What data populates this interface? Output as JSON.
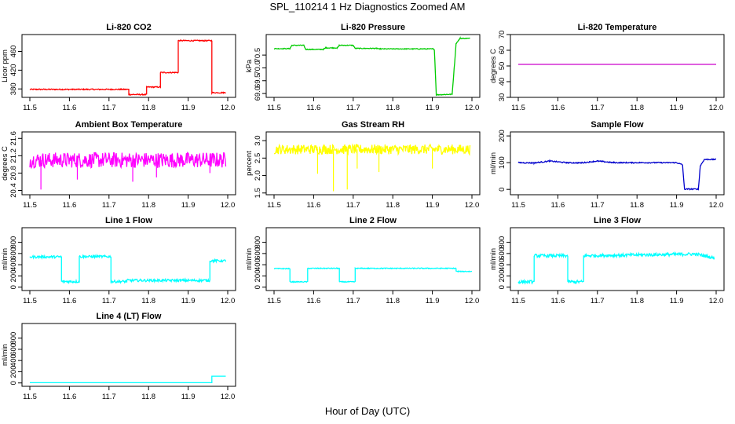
{
  "page_title": "SPL_110214  1 Hz Diagnostics Zoomed AM",
  "x_axis_label": "Hour of Day (UTC)",
  "chart_data": [
    {
      "type": "line",
      "title": "Li-820 CO2",
      "ylabel": "Licor ppm",
      "color": "#ff0000",
      "xlim": [
        11.5,
        12.0
      ],
      "ylim": [
        362,
        496
      ],
      "xticks": [
        "11.5",
        "11.6",
        "11.7",
        "11.8",
        "11.9",
        "12.0"
      ],
      "yticks": [
        "380",
        "420",
        "460"
      ],
      "series": [
        {
          "noise": 1.2,
          "points": [
            [
              11.5,
              379
            ],
            [
              11.75,
              379
            ],
            [
              11.75,
              368
            ],
            [
              11.795,
              368
            ],
            [
              11.795,
              384
            ],
            [
              11.83,
              384
            ],
            [
              11.83,
              415
            ],
            [
              11.875,
              415
            ],
            [
              11.875,
              483
            ],
            [
              11.96,
              483
            ],
            [
              11.96,
              372
            ],
            [
              11.995,
              372
            ]
          ]
        }
      ]
    },
    {
      "type": "line",
      "title": "Li-820 Pressure",
      "ylabel": "kPa",
      "color": "#00cc00",
      "xlim": [
        11.5,
        12.0
      ],
      "ylim": [
        68.85,
        71.3
      ],
      "xticks": [
        "11.5",
        "11.6",
        "11.7",
        "11.8",
        "11.9",
        "12.0"
      ],
      "yticks": [
        "69.0",
        "69.5",
        "70.0",
        "70.5"
      ],
      "series": [
        {
          "noise": 0.015,
          "points": [
            [
              11.5,
              70.75
            ],
            [
              11.54,
              70.75
            ],
            [
              11.545,
              70.88
            ],
            [
              11.575,
              70.88
            ],
            [
              11.58,
              70.72
            ],
            [
              11.625,
              70.72
            ],
            [
              11.63,
              70.78
            ],
            [
              11.66,
              70.78
            ],
            [
              11.665,
              70.88
            ],
            [
              11.7,
              70.88
            ],
            [
              11.705,
              70.76
            ],
            [
              11.76,
              70.76
            ],
            [
              11.765,
              70.74
            ],
            [
              11.9,
              70.74
            ],
            [
              11.905,
              70.72
            ],
            [
              11.91,
              68.95
            ],
            [
              11.95,
              68.97
            ],
            [
              11.96,
              70.95
            ],
            [
              11.97,
              71.15
            ],
            [
              11.995,
              71.15
            ]
          ]
        }
      ]
    },
    {
      "type": "line",
      "title": "Li-820 Temperature",
      "ylabel": "degrees C",
      "color": "#cc00cc",
      "xlim": [
        11.5,
        12.0
      ],
      "ylim": [
        30,
        70
      ],
      "xticks": [
        "11.5",
        "11.6",
        "11.7",
        "11.8",
        "11.9",
        "12.0"
      ],
      "yticks": [
        "30",
        "40",
        "50",
        "60",
        "70"
      ],
      "series": [
        {
          "noise": 0,
          "points": [
            [
              11.5,
              51
            ],
            [
              12.0,
              51
            ]
          ]
        }
      ]
    },
    {
      "type": "line",
      "title": "Ambient Box Temperature",
      "ylabel": "degrees C",
      "color": "#ff00ff",
      "xlim": [
        11.5,
        12.0
      ],
      "ylim": [
        20.3,
        21.75
      ],
      "xticks": [
        "11.5",
        "11.6",
        "11.7",
        "11.8",
        "11.9",
        "12.0"
      ],
      "yticks": [
        "20.4",
        "20.8",
        "21.2",
        "21.6"
      ],
      "series": [
        {
          "noise": 0.18,
          "spikes": [
            [
              11.528,
              20.42
            ],
            [
              11.62,
              20.65
            ],
            [
              11.76,
              20.6
            ],
            [
              11.82,
              20.7
            ],
            [
              11.955,
              20.8
            ]
          ],
          "points": [
            [
              11.5,
              21.1
            ],
            [
              11.995,
              21.1
            ]
          ]
        }
      ]
    },
    {
      "type": "line",
      "title": "Gas Stream RH",
      "ylabel": "percent",
      "color": "#ffff00",
      "xlim": [
        11.5,
        12.0
      ],
      "ylim": [
        1.45,
        3.25
      ],
      "xticks": [
        "11.5",
        "11.6",
        "11.7",
        "11.8",
        "11.9",
        "12.0"
      ],
      "yticks": [
        "1.5",
        "2.0",
        "2.5",
        "3.0"
      ],
      "series": [
        {
          "noise": 0.14,
          "spikes": [
            [
              11.61,
              2.05
            ],
            [
              11.65,
              1.55
            ],
            [
              11.685,
              1.6
            ],
            [
              11.71,
              2.2
            ],
            [
              11.765,
              2.1
            ],
            [
              11.9,
              2.2
            ]
          ],
          "points": [
            [
              11.5,
              2.75
            ],
            [
              11.995,
              2.75
            ]
          ]
        }
      ]
    },
    {
      "type": "line",
      "title": "Sample Flow",
      "ylabel": "ml/min",
      "color": "#0000cc",
      "xlim": [
        11.5,
        12.0
      ],
      "ylim": [
        -20,
        215
      ],
      "xticks": [
        "11.5",
        "11.6",
        "11.7",
        "11.8",
        "11.9",
        "12.0"
      ],
      "yticks": [
        "0",
        "100",
        "200"
      ],
      "series": [
        {
          "noise": 2,
          "points": [
            [
              11.5,
              100
            ],
            [
              11.54,
              99
            ],
            [
              11.58,
              106
            ],
            [
              11.62,
              100
            ],
            [
              11.66,
              99
            ],
            [
              11.7,
              106
            ],
            [
              11.74,
              100
            ],
            [
              11.9,
              100
            ],
            [
              11.915,
              92
            ],
            [
              11.92,
              1
            ],
            [
              11.955,
              1
            ],
            [
              11.96,
              88
            ],
            [
              11.97,
              112
            ],
            [
              12.0,
              112
            ]
          ]
        }
      ]
    },
    {
      "type": "line",
      "title": "Line 1 Flow",
      "ylabel": "ml/min",
      "color": "#00ffff",
      "xlim": [
        11.5,
        12.0
      ],
      "ylim": [
        -60,
        1060
      ],
      "xticks": [
        "11.5",
        "11.6",
        "11.7",
        "11.8",
        "11.9",
        "12.0"
      ],
      "yticks": [
        "0",
        "200",
        "400",
        "600",
        "800"
      ],
      "series": [
        {
          "noise": 22,
          "points": [
            [
              11.5,
              540
            ],
            [
              11.58,
              540
            ],
            [
              11.58,
              100
            ],
            [
              11.625,
              100
            ],
            [
              11.625,
              545
            ],
            [
              11.705,
              545
            ],
            [
              11.705,
              100
            ],
            [
              11.745,
              100
            ],
            [
              11.745,
              120
            ],
            [
              11.955,
              120
            ],
            [
              11.955,
              470
            ],
            [
              11.995,
              470
            ]
          ]
        }
      ]
    },
    {
      "type": "line",
      "title": "Line 2 Flow",
      "ylabel": "ml/min",
      "color": "#00ffff",
      "xlim": [
        11.5,
        12.0
      ],
      "ylim": [
        -60,
        1060
      ],
      "xticks": [
        "11.5",
        "11.6",
        "11.7",
        "11.8",
        "11.9",
        "12.0"
      ],
      "yticks": [
        "0",
        "200",
        "400",
        "600",
        "800"
      ],
      "series": [
        {
          "noise": 8,
          "points": [
            [
              11.5,
              330
            ],
            [
              11.54,
              330
            ],
            [
              11.54,
              95
            ],
            [
              11.585,
              95
            ],
            [
              11.585,
              335
            ],
            [
              11.665,
              335
            ],
            [
              11.665,
              95
            ],
            [
              11.705,
              95
            ],
            [
              11.705,
              335
            ],
            [
              11.96,
              335
            ],
            [
              11.96,
              280
            ],
            [
              12.0,
              280
            ]
          ]
        }
      ]
    },
    {
      "type": "line",
      "title": "Line 3 Flow",
      "ylabel": "ml/min",
      "color": "#00ffff",
      "xlim": [
        11.5,
        12.0
      ],
      "ylim": [
        -60,
        1060
      ],
      "xticks": [
        "11.5",
        "11.6",
        "11.7",
        "11.8",
        "11.9",
        "12.0"
      ],
      "yticks": [
        "0",
        "200",
        "400",
        "600",
        "800"
      ],
      "series": [
        {
          "noise": 28,
          "points": [
            [
              11.5,
              95
            ],
            [
              11.54,
              95
            ],
            [
              11.54,
              560
            ],
            [
              11.625,
              560
            ],
            [
              11.625,
              95
            ],
            [
              11.665,
              95
            ],
            [
              11.665,
              560
            ],
            [
              11.95,
              590
            ],
            [
              11.995,
              520
            ]
          ]
        }
      ]
    },
    {
      "type": "line",
      "title": "Line 4 (LT) Flow",
      "ylabel": "ml/min",
      "color": "#00ffff",
      "xlim": [
        11.5,
        12.0
      ],
      "ylim": [
        -60,
        1060
      ],
      "xticks": [
        "11.5",
        "11.6",
        "11.7",
        "11.8",
        "11.9",
        "12.0"
      ],
      "yticks": [
        "0",
        "200",
        "400",
        "600",
        "800"
      ],
      "series": [
        {
          "noise": 0,
          "points": [
            [
              11.5,
              5
            ],
            [
              11.96,
              5
            ],
            [
              11.96,
              120
            ],
            [
              11.995,
              120
            ]
          ]
        }
      ]
    }
  ]
}
